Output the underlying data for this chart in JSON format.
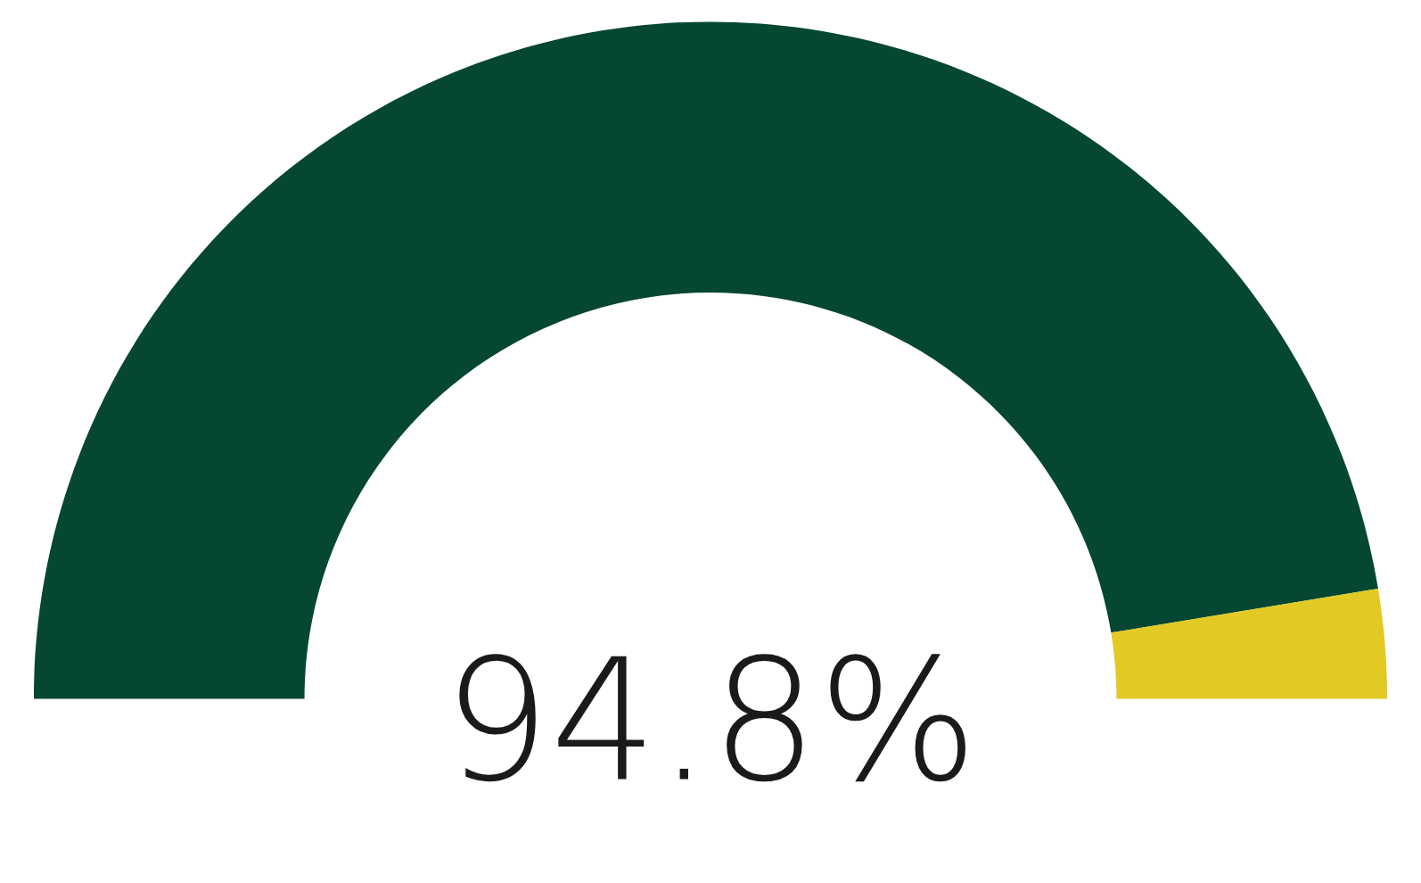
{
  "chart_data": {
    "type": "donut",
    "categories": [
      null,
      null
    ],
    "values": [
      94.8,
      5.2
    ],
    "colors": [
      "#054732",
      "#e2c923"
    ],
    "annotations": [
      "94.8%"
    ]
  }
}
